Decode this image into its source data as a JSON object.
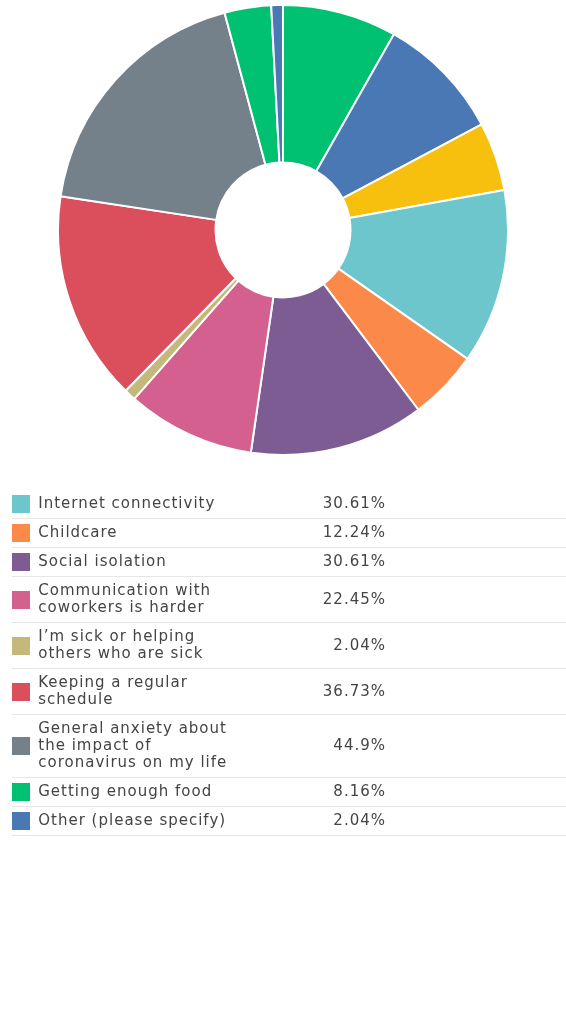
{
  "chart_data": {
    "type": "donut",
    "categories": [
      null,
      null,
      null,
      "Internet connectivity",
      "Childcare",
      "Social isolation",
      "Communication with coworkers is harder",
      "I’m sick or helping others who are sick",
      "Keeping a regular schedule",
      "General anxiety about the impact of coronavirus on my life",
      "Getting enough food",
      "Other (please specify)"
    ],
    "values": [
      20,
      22,
      12,
      30.61,
      12.24,
      30.61,
      22.45,
      2.04,
      36.73,
      44.9,
      8.16,
      2.04
    ],
    "value_labels": [
      null,
      null,
      null,
      "30.61%",
      "12.24%",
      "30.61%",
      "22.45%",
      "2.04%",
      "36.73%",
      "44.9%",
      "8.16%",
      "2.04%"
    ],
    "colors": [
      "#00c072",
      "#4a78b4",
      "#f8c00e",
      "#6cc6cc",
      "#fb8a4a",
      "#7c5c92",
      "#d4608f",
      "#c4b87a",
      "#db4f5d",
      "#74808a",
      "#00c072",
      "#4a78b4"
    ],
    "legend": "bottom"
  }
}
